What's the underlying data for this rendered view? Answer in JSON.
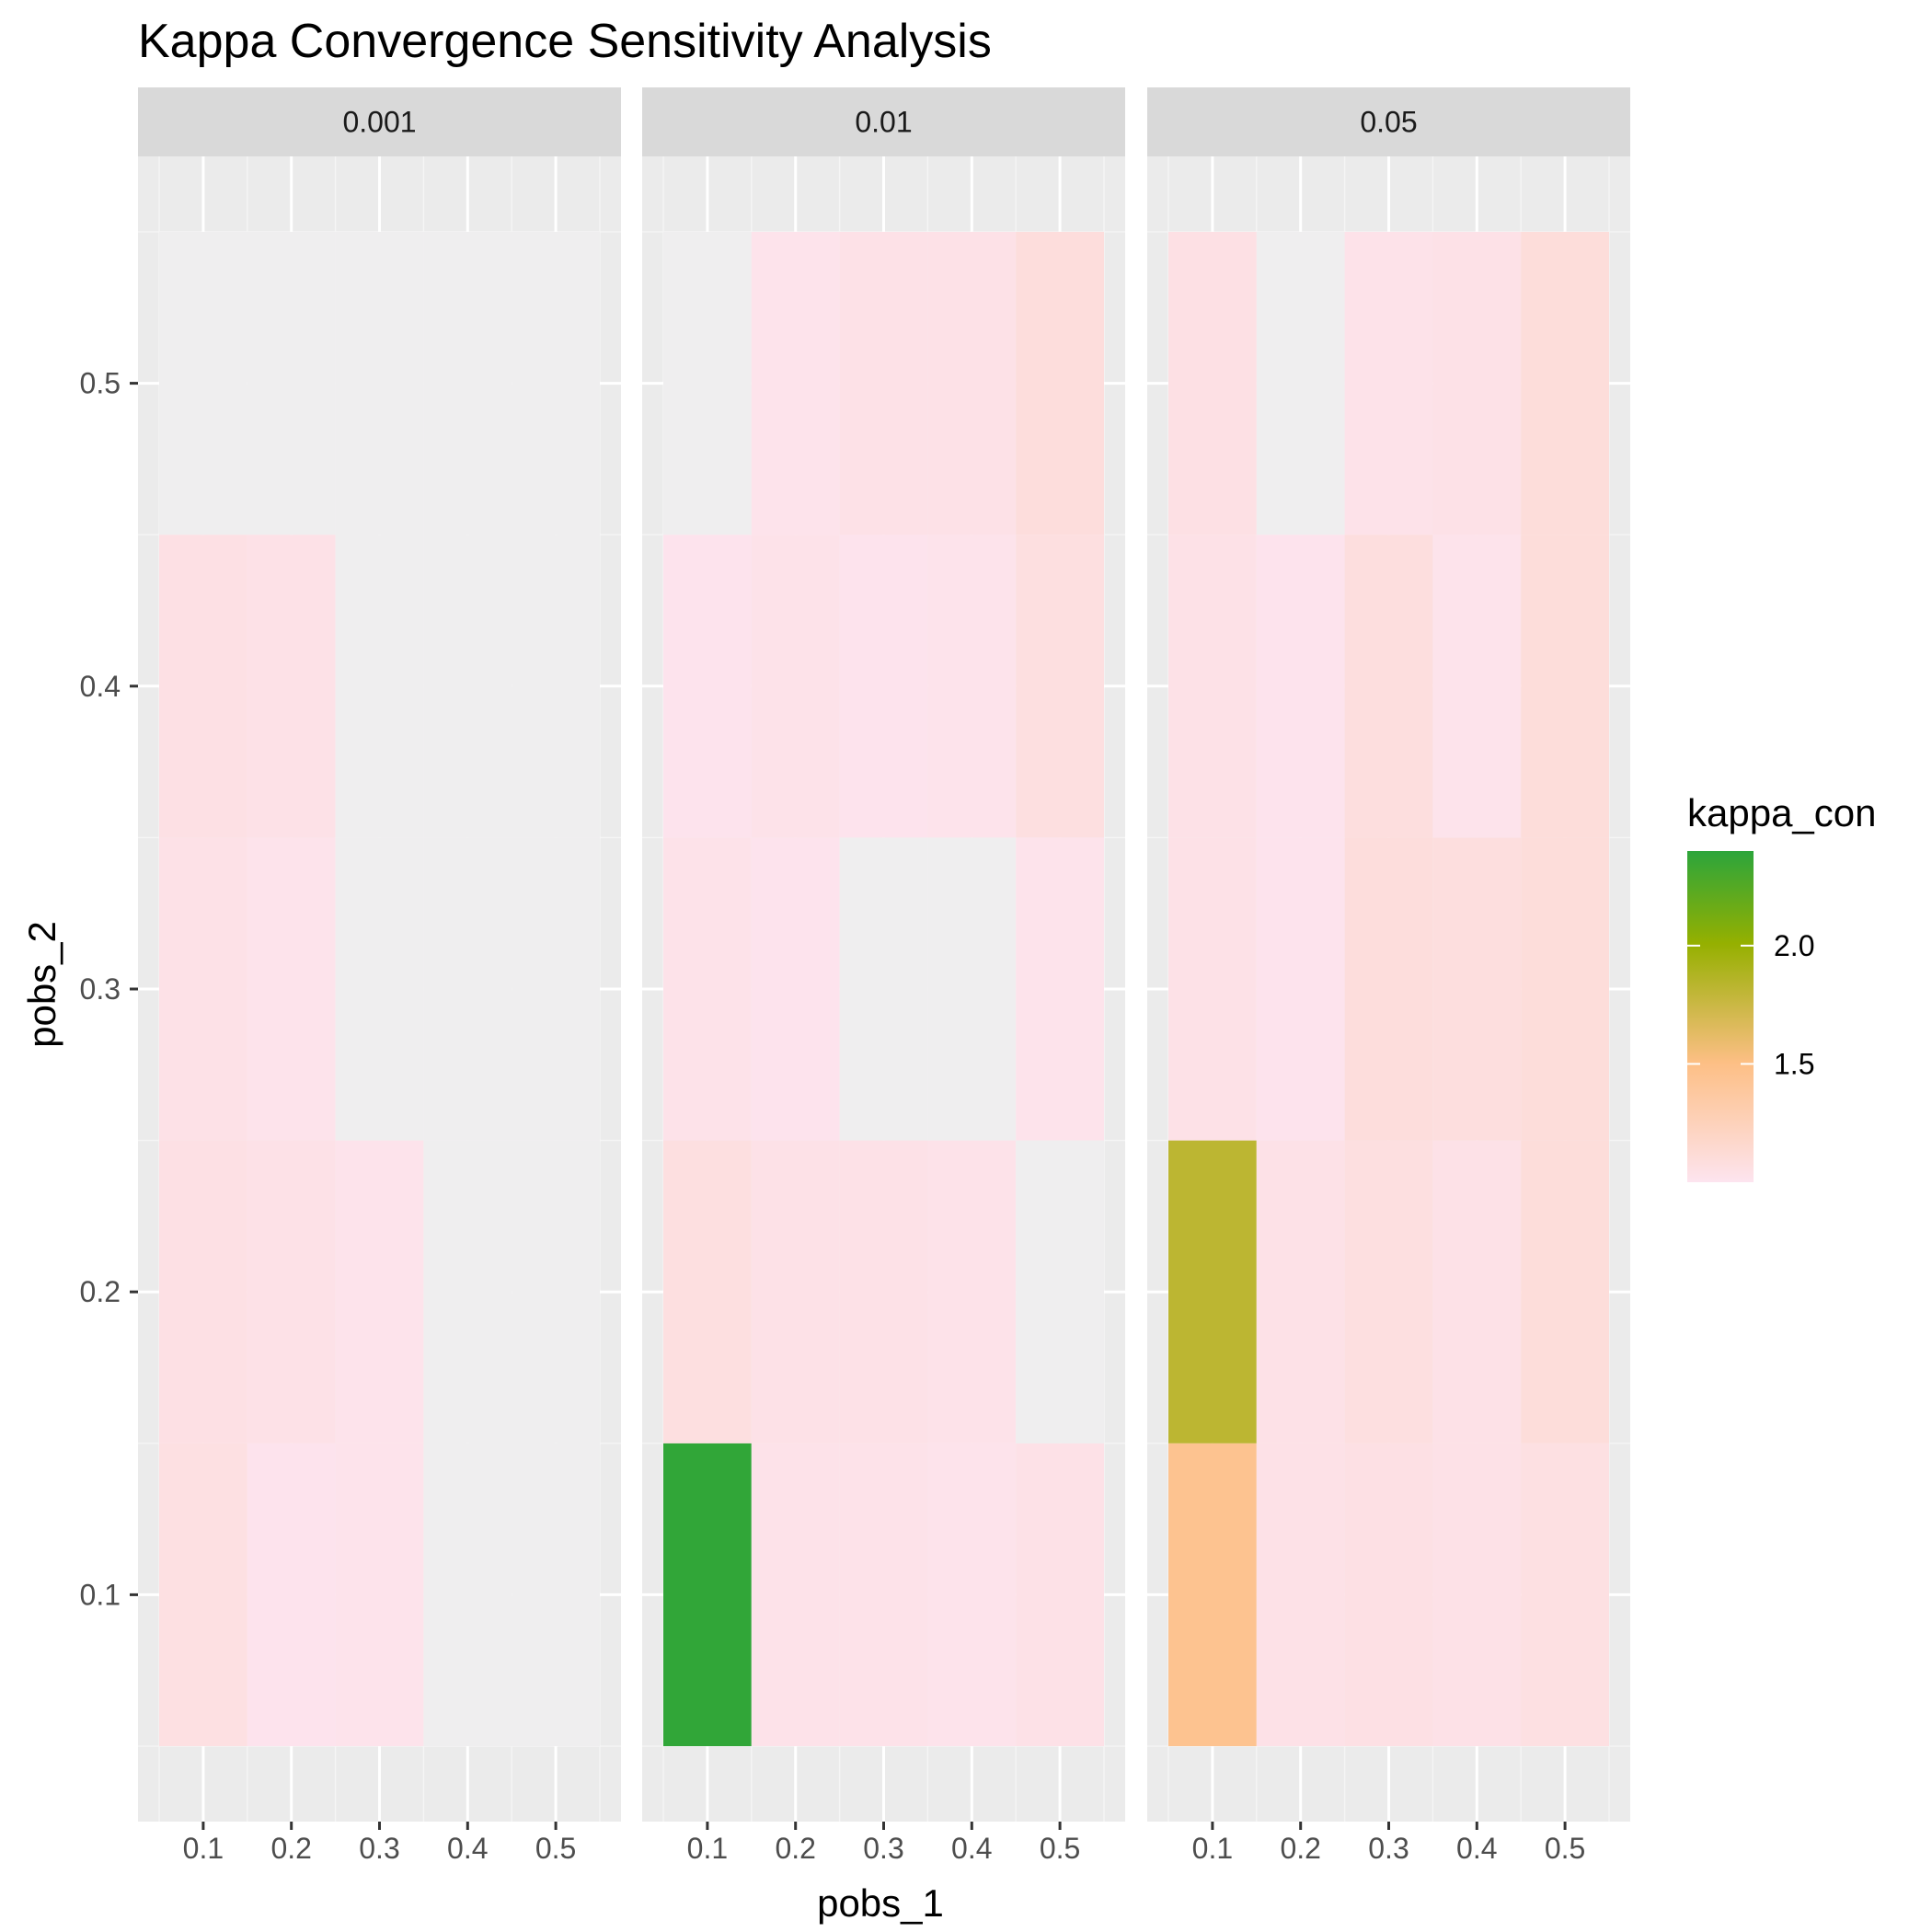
{
  "chart_data": {
    "type": "heatmap",
    "title": "Kappa Convergence Sensitivity Analysis",
    "xlabel": "pobs_1",
    "ylabel": "pobs_2",
    "facets": [
      "0.001",
      "0.01",
      "0.05"
    ],
    "x": [
      0.1,
      0.2,
      0.3,
      0.4,
      0.5
    ],
    "y": [
      0.1,
      0.2,
      0.3,
      0.4,
      0.5
    ],
    "x_ticks": [
      "0.1",
      "0.2",
      "0.3",
      "0.4",
      "0.5"
    ],
    "y_ticks": [
      "0.1",
      "0.2",
      "0.3",
      "0.4",
      "0.5"
    ],
    "xlim": [
      0.05,
      0.55
    ],
    "ylim": [
      0.05,
      0.55
    ],
    "values": [
      [
        [
          1.06,
          1.01,
          1.02,
          1.0,
          1.0
        ],
        [
          1.05,
          1.04,
          1.02,
          1.0,
          1.0
        ],
        [
          1.04,
          1.02,
          1.0,
          1.0,
          1.0
        ],
        [
          1.05,
          1.04,
          1.0,
          1.0,
          1.0
        ],
        [
          1.0,
          1.0,
          1.0,
          1.0,
          1.0
        ]
      ],
      [
        [
          2.38,
          1.03,
          1.03,
          1.02,
          1.04
        ],
        [
          1.07,
          1.04,
          1.04,
          1.03,
          1.0
        ],
        [
          1.03,
          1.01,
          1.0,
          0.99,
          1.02
        ],
        [
          1.01,
          1.03,
          1.01,
          1.02,
          1.07
        ],
        [
          1.0,
          1.02,
          1.04,
          1.04,
          1.09
        ]
      ],
      [
        [
          1.45,
          1.04,
          1.05,
          1.04,
          1.06
        ],
        [
          1.82,
          1.04,
          1.07,
          1.04,
          1.1
        ],
        [
          1.04,
          1.01,
          1.09,
          1.08,
          1.1
        ],
        [
          1.04,
          1.01,
          1.08,
          1.02,
          1.1
        ],
        [
          1.05,
          1.0,
          1.03,
          1.04,
          1.1
        ]
      ]
    ],
    "legend": {
      "title": "kappa_con",
      "ticks": [
        2.0,
        1.5
      ],
      "tick_labels": [
        "2.0",
        "1.5"
      ],
      "range": [
        1.0,
        2.4
      ],
      "colors": [
        "#fde4ef",
        "#fdbf85",
        "#95b000",
        "#2ca53b"
      ],
      "placement": "right"
    },
    "grid": true,
    "colors": {
      "panel_bg": "#ebebeb",
      "strip_bg": "#d9d9d9",
      "grid_major": "#ffffff",
      "empty_tile": "#efeeef"
    }
  }
}
